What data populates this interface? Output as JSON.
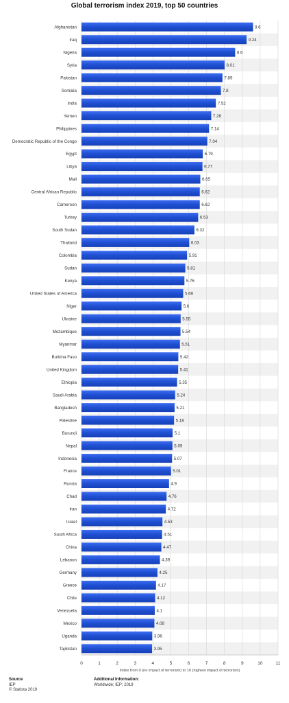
{
  "chart_data": {
    "type": "bar",
    "orientation": "horizontal",
    "title": "Global terrorism index 2019, top 50 countries",
    "xlabel": "Index from 0 (no impact of terrorism) to 10 (highest impact of terrorism)",
    "ylabel": "",
    "xlim": [
      0,
      11
    ],
    "xticks": [
      "0",
      "1",
      "2",
      "3",
      "4",
      "5",
      "6",
      "7",
      "8",
      "9",
      "10",
      "11"
    ],
    "grid": true,
    "bar_color": "#1f4fd1",
    "categories": [
      "Afghanistan",
      "Iraq",
      "Nigeria",
      "Syria",
      "Pakistan",
      "Somalia",
      "India",
      "Yemen",
      "Philippines",
      "Democratic Republic of the Congo",
      "Egypt",
      "Libya",
      "Mali",
      "Central African Republic",
      "Cameroon",
      "Turkey",
      "South Sudan",
      "Thailand",
      "Colombia",
      "Sudan",
      "Kenya",
      "United States of America",
      "Niger",
      "Ukraine",
      "Mozambique",
      "Myanmar",
      "Burkina Faso",
      "United Kingdom",
      "Ethiopia",
      "Saudi Arabia",
      "Bangladesh",
      "Palestine",
      "Burundi",
      "Nepal",
      "Indonesia",
      "France",
      "Russia",
      "Chad",
      "Iran",
      "Israel",
      "South Africa",
      "China",
      "Lebanon",
      "Germany",
      "Greece",
      "Chile",
      "Venezuela",
      "Mexico",
      "Uganda",
      "Tajikistan"
    ],
    "values": [
      9.6,
      9.24,
      8.6,
      8.01,
      7.89,
      7.8,
      7.52,
      7.26,
      7.14,
      7.04,
      6.79,
      6.77,
      6.65,
      6.62,
      6.62,
      6.53,
      6.32,
      6.03,
      5.91,
      5.81,
      5.76,
      5.69,
      5.6,
      5.55,
      5.54,
      5.51,
      5.42,
      5.41,
      5.35,
      5.24,
      5.21,
      5.18,
      5.1,
      5.09,
      5.07,
      5.01,
      4.9,
      4.76,
      4.72,
      4.53,
      4.51,
      4.47,
      4.39,
      4.25,
      4.17,
      4.12,
      4.1,
      4.08,
      3.96,
      3.95
    ],
    "value_labels": [
      "9.6",
      "9.24",
      "8.6",
      "8.01",
      "7.89",
      "7.8",
      "7.52",
      "7.26",
      "7.14",
      "7.04",
      "6.79",
      "6.77",
      "6.65",
      "6.62",
      "6.62",
      "6.53",
      "6.32",
      "6.03",
      "5.91",
      "5.81",
      "5.76",
      "5.69",
      "5.6",
      "5.55",
      "5.54",
      "5.51",
      "5.42",
      "5.41",
      "5.35",
      "5.24",
      "5.21",
      "5.18",
      "5.1",
      "5.09",
      "5.07",
      "5.01",
      "4.9",
      "4.76",
      "4.72",
      "4.53",
      "4.51",
      "4.47",
      "4.39",
      "4.25",
      "4.17",
      "4.12",
      "4.1",
      "4.08",
      "3.96",
      "3.95"
    ]
  },
  "footer": {
    "source_heading": "Source",
    "source_lines": [
      "IEP",
      "© Statista 2019"
    ],
    "info_heading": "Additional Information:",
    "info_text": "Worldwide; IEP; 2019"
  }
}
